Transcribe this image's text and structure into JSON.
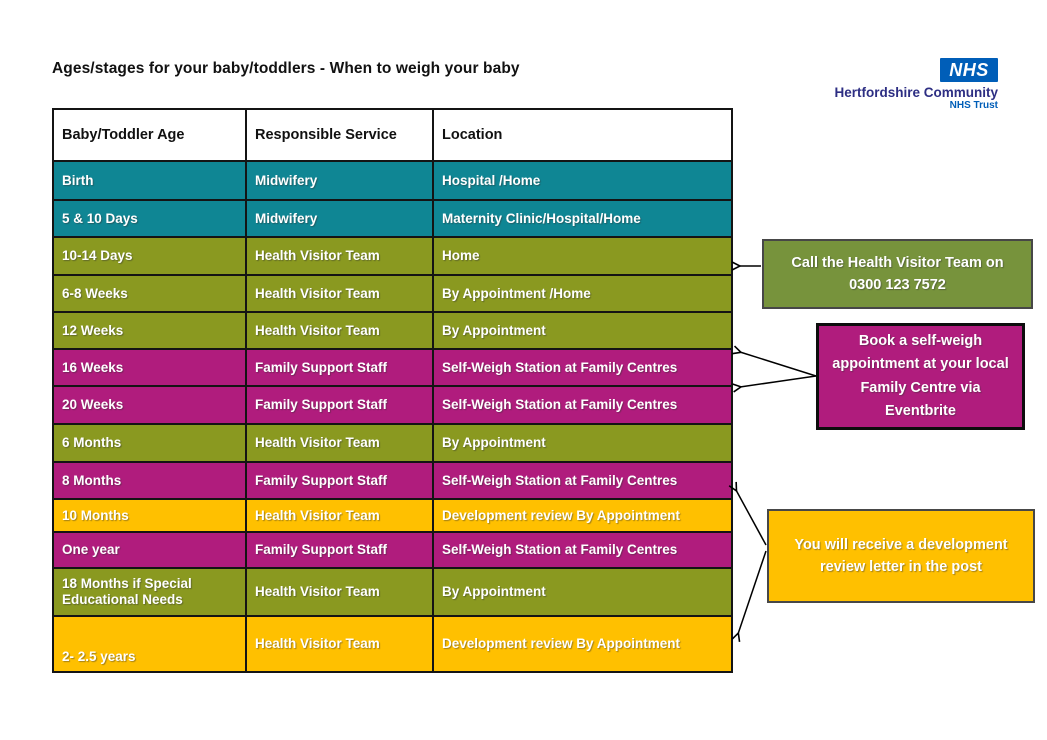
{
  "page": {
    "title": "Ages/stages for your baby/toddlers - When to weigh your baby"
  },
  "logo": {
    "nhs": "NHS",
    "org": "Hertfordshire Community",
    "sub": "NHS Trust"
  },
  "table": {
    "headers": [
      "Baby/Toddler Age",
      "Responsible Service",
      "Location"
    ],
    "rows": [
      {
        "age": "Birth",
        "service": "Midwifery",
        "location": "Hospital /Home",
        "color": "teal"
      },
      {
        "age": "5 & 10 Days",
        "service": "Midwifery",
        "location": "Maternity Clinic/Hospital/Home",
        "color": "teal"
      },
      {
        "age": "10-14 Days",
        "service": "Health Visitor Team",
        "location": "Home",
        "color": "olive"
      },
      {
        "age": "6-8 Weeks",
        "service": "Health Visitor Team",
        "location": "By Appointment /Home",
        "color": "olive"
      },
      {
        "age": "12 Weeks",
        "service": "Health Visitor Team",
        "location": "By Appointment",
        "color": "olive"
      },
      {
        "age": "16 Weeks",
        "service": "Family Support Staff",
        "location": "Self-Weigh Station at Family Centres",
        "color": "magenta"
      },
      {
        "age": "20 Weeks",
        "service": "Family Support Staff",
        "location": "Self-Weigh Station at Family Centres",
        "color": "magenta"
      },
      {
        "age": "6 Months",
        "service": "Health Visitor Team",
        "location": "By Appointment",
        "color": "olive"
      },
      {
        "age": "8 Months",
        "service": "Family Support Staff",
        "location": "Self-Weigh Station at Family Centres",
        "color": "magenta"
      },
      {
        "age": "10 Months",
        "service": "Health Visitor Team",
        "location": "Development review By Appointment",
        "color": "yellow"
      },
      {
        "age": "One year",
        "service": "Family Support Staff",
        "location": "Self-Weigh Station at Family Centres",
        "color": "magenta"
      },
      {
        "age": "18 Months if Special Educational Needs",
        "service": "Health Visitor Team",
        "location": "By Appointment",
        "color": "olive"
      },
      {
        "age": "2- 2.5 years",
        "service": "Health Visitor Team",
        "location": "Development review By Appointment",
        "color": "yellow"
      }
    ]
  },
  "callouts": [
    {
      "id": "call-health-visitor",
      "text": "Call the Health Visitor Team on 0300 123 7572",
      "color": "green"
    },
    {
      "id": "book-self-weigh",
      "text": "Book a self-weigh appointment at your local Family Centre via Eventbrite",
      "color": "magenta"
    },
    {
      "id": "development-review",
      "text": "You will receive a development review letter in the post",
      "color": "yellow"
    }
  ],
  "colors": {
    "teal": "#0F8694",
    "olive": "#8A9920",
    "magenta": "#B01C7D",
    "yellow": "#FFC000",
    "green": "#77933C",
    "nhs_blue": "#005EB8",
    "nhs_dark_blue": "#2D2E83",
    "border_black": "#141414"
  }
}
